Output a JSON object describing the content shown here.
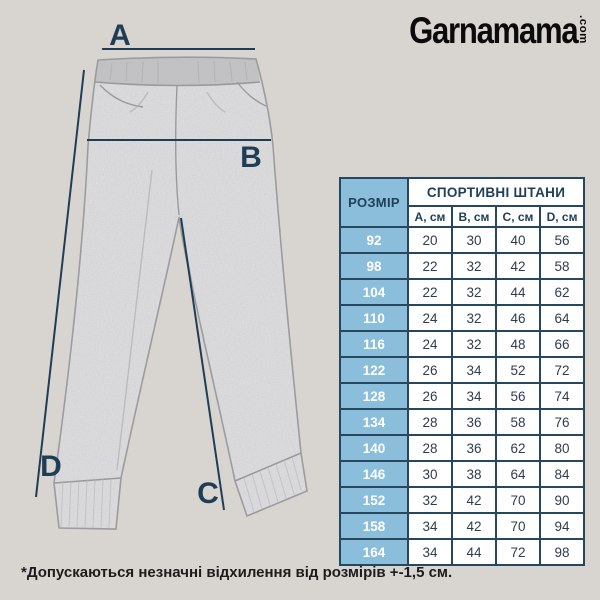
{
  "logo": {
    "brand": "Garnamama",
    "tld": ".com"
  },
  "diagram": {
    "label_a": "A",
    "label_b": "B",
    "label_c": "C",
    "label_d": "D"
  },
  "size_chart": {
    "corner_header": "РОЗМІР",
    "group_header": "СПОРТИВНІ ШТАНИ",
    "columns": [
      "A, см",
      "B, см",
      "C, см",
      "D, см"
    ],
    "rows": [
      {
        "size": "92",
        "values": [
          "20",
          "30",
          "40",
          "56"
        ]
      },
      {
        "size": "98",
        "values": [
          "22",
          "32",
          "42",
          "58"
        ]
      },
      {
        "size": "104",
        "values": [
          "22",
          "32",
          "44",
          "62"
        ]
      },
      {
        "size": "110",
        "values": [
          "24",
          "32",
          "46",
          "64"
        ]
      },
      {
        "size": "116",
        "values": [
          "24",
          "32",
          "48",
          "66"
        ]
      },
      {
        "size": "122",
        "values": [
          "26",
          "34",
          "52",
          "72"
        ]
      },
      {
        "size": "128",
        "values": [
          "26",
          "34",
          "56",
          "74"
        ]
      },
      {
        "size": "134",
        "values": [
          "28",
          "36",
          "58",
          "76"
        ]
      },
      {
        "size": "140",
        "values": [
          "28",
          "36",
          "62",
          "80"
        ]
      },
      {
        "size": "146",
        "values": [
          "30",
          "38",
          "64",
          "84"
        ]
      },
      {
        "size": "152",
        "values": [
          "32",
          "42",
          "70",
          "90"
        ]
      },
      {
        "size": "158",
        "values": [
          "34",
          "42",
          "70",
          "94"
        ]
      },
      {
        "size": "164",
        "values": [
          "34",
          "44",
          "72",
          "98"
        ]
      }
    ]
  },
  "footnote": "*Допускаються незначні відхилення від розмірів +-1,5 см.",
  "colors": {
    "background": "#d8d5d1",
    "accent_blue": "#8abedb",
    "navy": "#1f3e55",
    "table_border": "#27475f",
    "pants_gray": "#c7c7c9"
  }
}
